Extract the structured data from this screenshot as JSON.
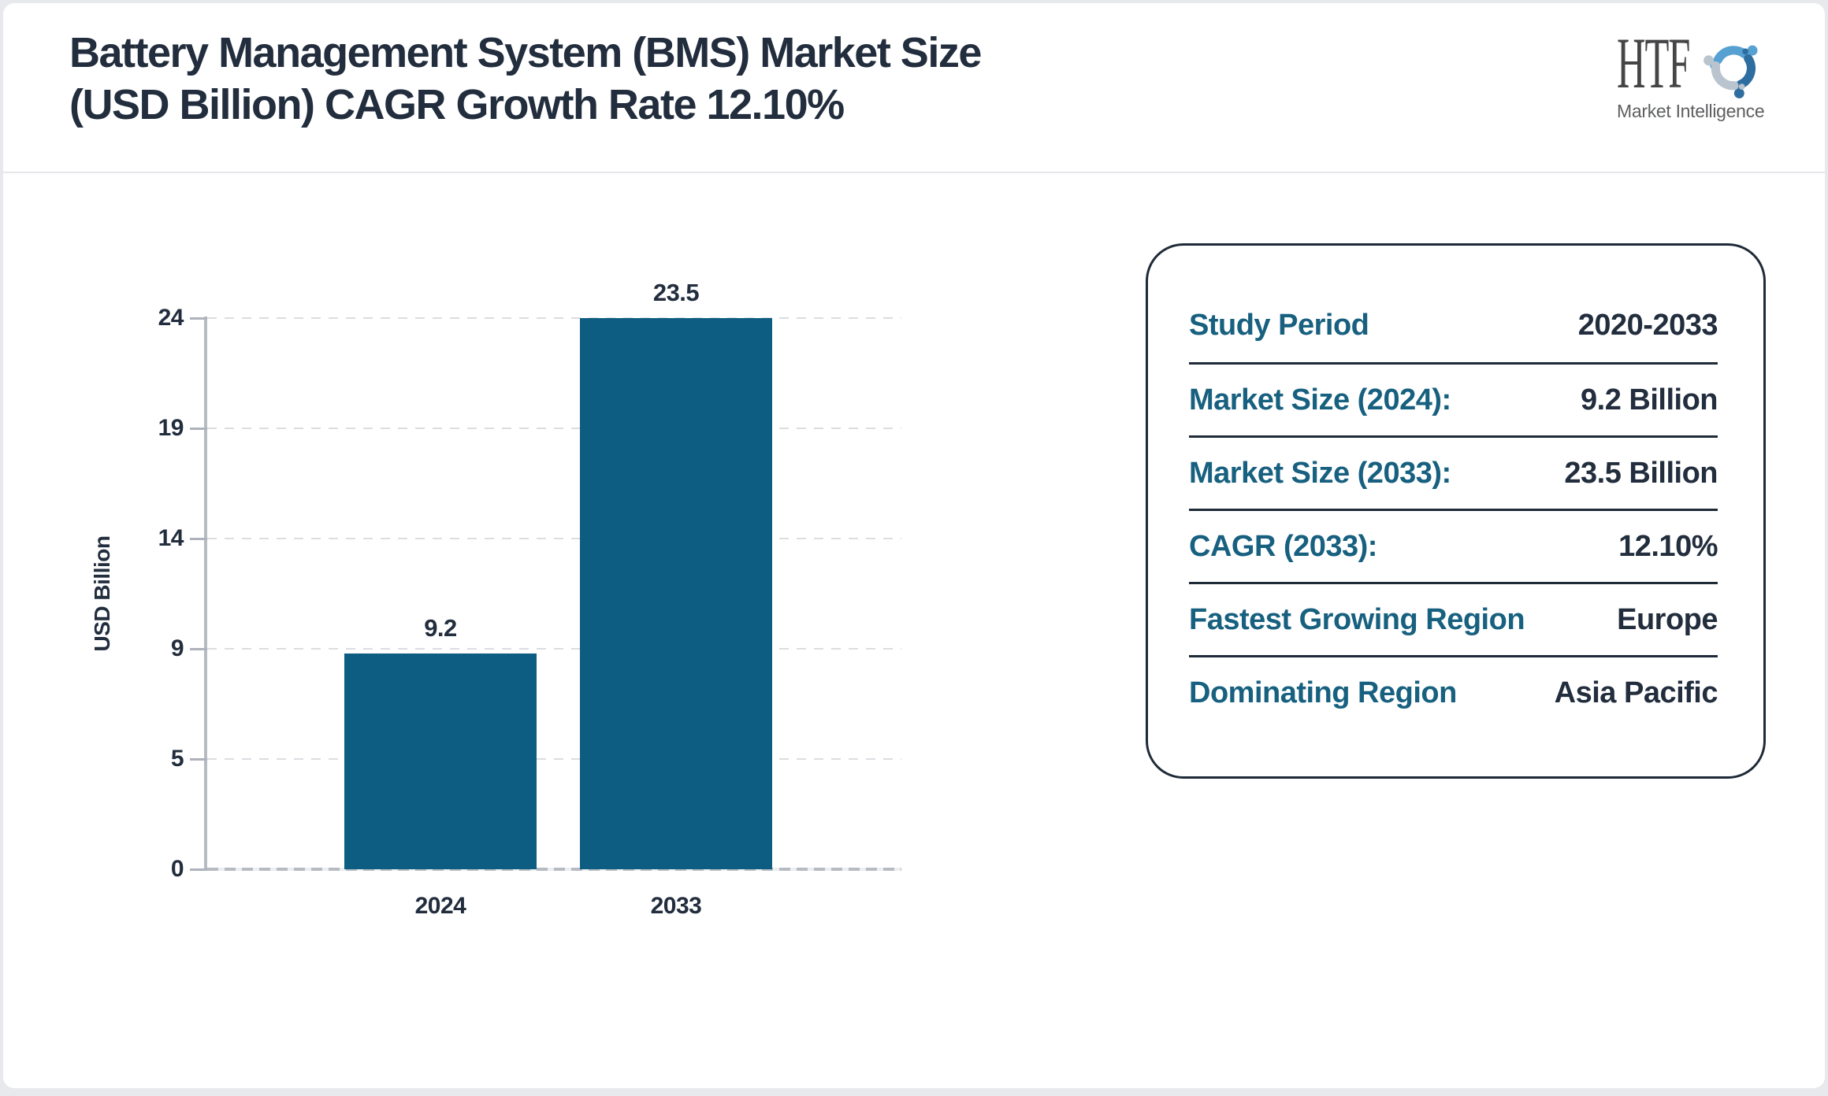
{
  "header": {
    "title_line1": "Battery Management System (BMS) Market Size",
    "title_line2": "(USD Billion) CAGR Growth Rate 12.10%",
    "logo": {
      "text": "HTF",
      "subtext": "Market Intelligence"
    }
  },
  "chart_data": {
    "type": "bar",
    "categories": [
      "2024",
      "2033"
    ],
    "values": [
      9.2,
      23.5
    ],
    "value_labels": [
      "9.2",
      "23.5"
    ],
    "title": "",
    "xlabel": "",
    "ylabel": "USD Billion",
    "y_ticks": [
      0,
      5,
      9,
      14,
      19,
      24
    ],
    "ymax": 23.5,
    "grid": "dashed horizontal",
    "legend": "none",
    "bar_color": "#0d5c81"
  },
  "info_panel": {
    "rows": [
      {
        "label": "Study Period",
        "value": "2020-2033"
      },
      {
        "label": "Market Size (2024):",
        "value": "9.2 Billion"
      },
      {
        "label": "Market Size (2033):",
        "value": "23.5 Billion"
      },
      {
        "label": "CAGR (2033):",
        "value": "12.10%"
      },
      {
        "label": "Fastest Growing Region",
        "value": "Europe"
      },
      {
        "label": "Dominating Region",
        "value": "Asia Pacific"
      }
    ]
  },
  "colors": {
    "bar": "#0d5c81",
    "label_teal": "#17607f",
    "text_navy": "#222d3d",
    "grid_gray": "#dbdde1",
    "axis_gray": "#b7bbc2",
    "page_border": "#e8e9ed",
    "logo_light_blue": "#57a1d2",
    "logo_dark_blue": "#2e6da0",
    "logo_gray_blue": "#b9c4ce"
  }
}
